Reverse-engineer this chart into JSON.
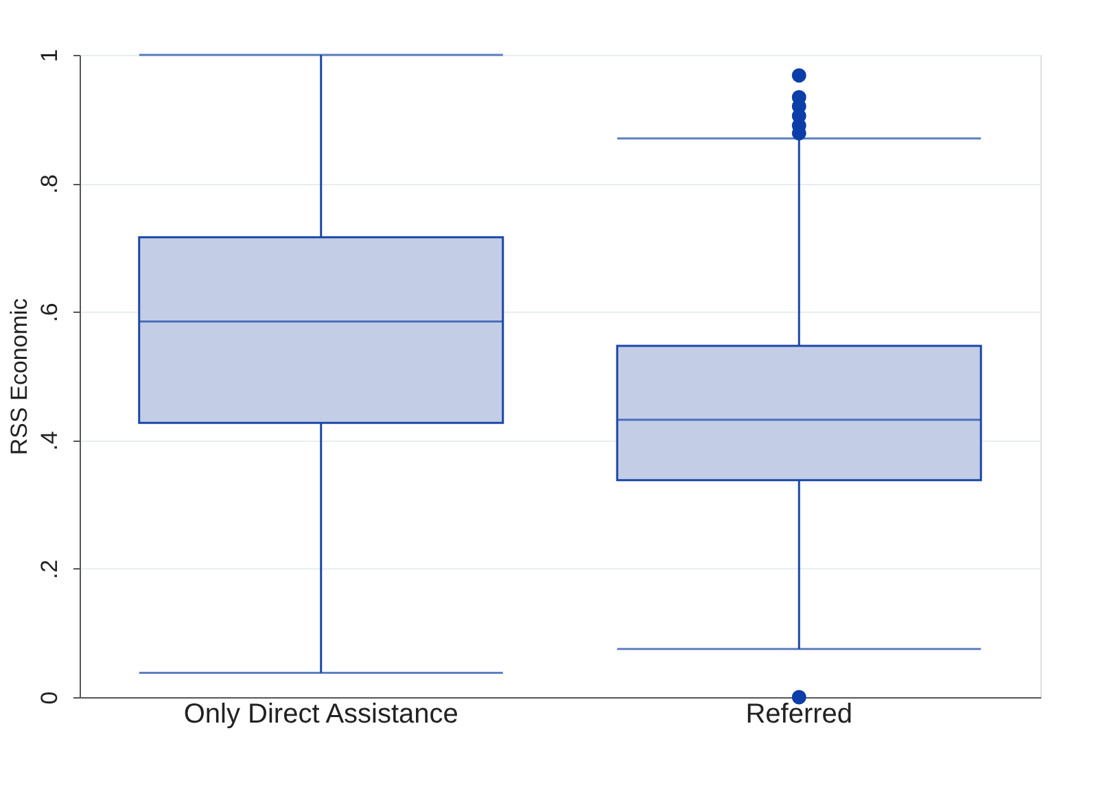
{
  "chart_data": {
    "type": "box",
    "ylabel": "RSS Economic",
    "categories": [
      "Only Direct Assistance",
      "Referred"
    ],
    "boxes": [
      {
        "low": 0.038,
        "q1": 0.427,
        "median": 0.585,
        "q3": 0.716,
        "high": 1.0
      },
      {
        "low": 0.075,
        "q1": 0.338,
        "median": 0.432,
        "q3": 0.547,
        "high": 0.87,
        "outliers": [
          0.968,
          0.934,
          0.92,
          0.905,
          0.89,
          0.878,
          0
        ]
      }
    ],
    "color": "#c3cde6",
    "ylim": [
      0,
      1
    ],
    "yticks": [
      0,
      {
        "value": 0.2,
        "label": ".2"
      },
      {
        "value": 0.4,
        "label": ".4"
      },
      {
        "value": 0.6,
        "label": ".6"
      },
      {
        "value": 0.8,
        "label": ".8"
      },
      1
    ],
    "grid": "y"
  }
}
